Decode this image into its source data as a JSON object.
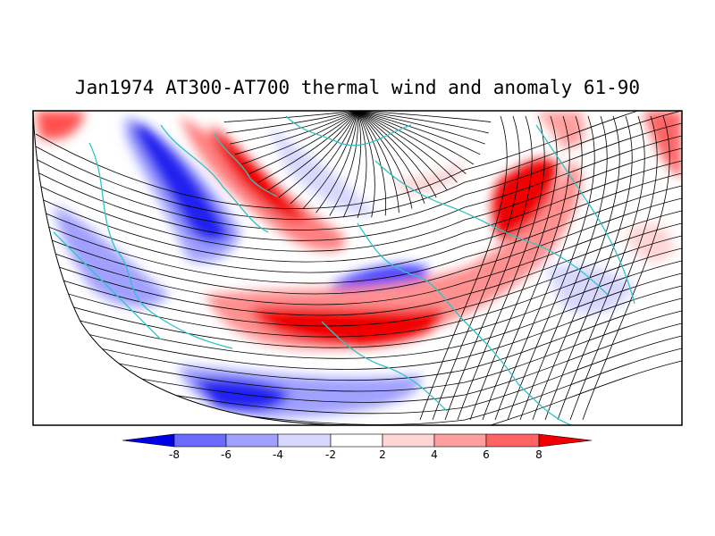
{
  "title": "Jan1974 AT300-AT700 thermal wind and anomaly 61-90",
  "colorbar": {
    "ticks": [
      "-8",
      "-6",
      "-4",
      "-2",
      "2",
      "4",
      "6",
      "8"
    ],
    "colors": [
      "#0000e6",
      "#6a6aff",
      "#a0a0ff",
      "#d8d8ff",
      "#ffffff",
      "#ffd5d5",
      "#ffa0a0",
      "#ff6464",
      "#f00000"
    ]
  },
  "colors": {
    "coastline": "#2ec4c4",
    "streamline": "#000000",
    "frame": "#000000"
  }
}
